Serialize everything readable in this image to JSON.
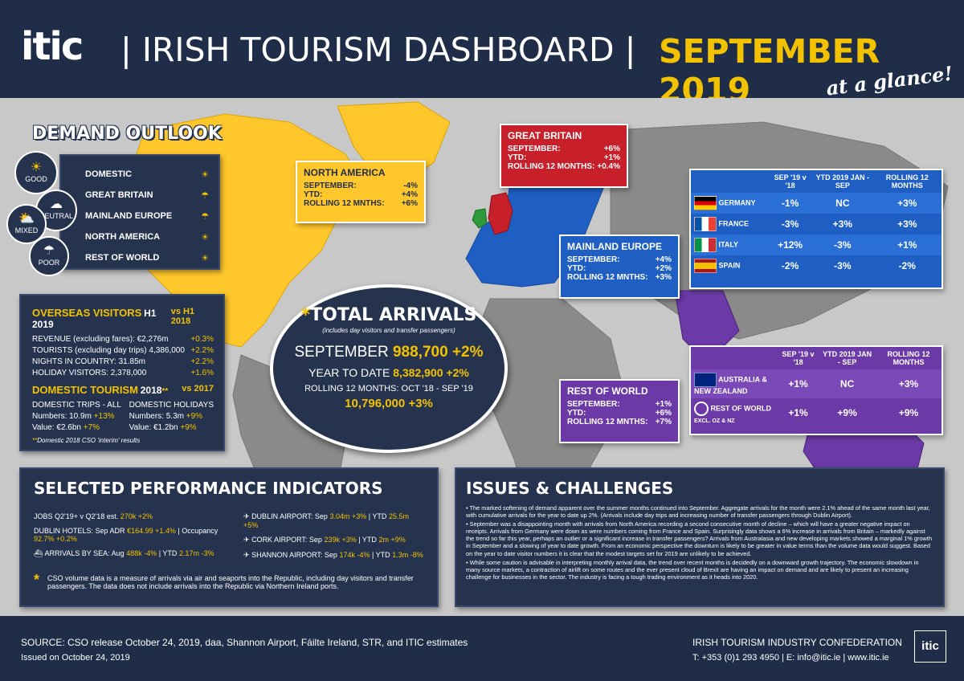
{
  "header": {
    "logo": "itic",
    "title": "|  IRISH TOURISM DASHBOARD  |",
    "month": "SEPTEMBER 2019",
    "tagline": "at a glance!"
  },
  "demand": {
    "title": "DEMAND OUTLOOK",
    "legend": [
      "GOOD",
      "NEUTRAL",
      "MIXED",
      "POOR"
    ],
    "markets": [
      "DOMESTIC",
      "GREAT BRITAIN",
      "MAINLAND EUROPE",
      "NORTH AMERICA",
      "REST OF WORLD"
    ]
  },
  "overseas": {
    "title": "OVERSEAS VISITORS",
    "period": "H1 2019",
    "compare": "vs H1 2018",
    "rows": [
      {
        "label": "REVENUE (excluding fares): €2,276m",
        "change": "+0.3%"
      },
      {
        "label": "TOURISTS (excluding day trips) 4,386,000",
        "change": "+2.2%"
      },
      {
        "label": "NIGHTS IN COUNTRY: 31.85m",
        "change": "+2.2%"
      },
      {
        "label": "HOLIDAY VISITORS: 2,378,000",
        "change": "+1.6%"
      }
    ]
  },
  "domestic": {
    "title": "DOMESTIC TOURISM",
    "period": "2018",
    "stars": "**",
    "compare": "vs 2017",
    "col1_head": "DOMESTIC TRIPS - ALL",
    "col1_num_label": "Numbers: 10.9m",
    "col1_num_change": "+13%",
    "col1_val_label": "Value: €2.6bn",
    "col1_val_change": "+7%",
    "col2_head": "DOMESTIC HOLIDAYS",
    "col2_num_label": "Numbers: 5.3m",
    "col2_num_change": "+9%",
    "col2_val_label": "Value: €1.2bn",
    "col2_val_change": "+9%",
    "note": "Domestic 2018 CSO 'interim' results"
  },
  "total": {
    "title": "TOTAL ARRIVALS",
    "star": "*",
    "sub": "(includes day visitors and transfer passengers)",
    "sep_label": "SEPTEMBER",
    "sep_value": "988,700 +2%",
    "ytd_label": "YEAR TO DATE",
    "ytd_value": "8,382,900 +2%",
    "r12_label": "ROLLING 12 MONTHS: OCT '18 - SEP '19",
    "r12_value": "10,796,000 +3%"
  },
  "north_america": {
    "title": "NORTH AMERICA",
    "rows": [
      {
        "label": "SEPTEMBER:",
        "value": "-4%"
      },
      {
        "label": "YTD:",
        "value": "+4%"
      },
      {
        "label": "ROLLING 12 MNTHS:",
        "value": "+6%"
      }
    ]
  },
  "great_britain": {
    "title": "GREAT BRITAIN",
    "rows": [
      {
        "label": "SEPTEMBER:",
        "value": "+6%"
      },
      {
        "label": "YTD:",
        "value": "+1%"
      },
      {
        "label": "ROLLING 12 MONTHS:",
        "value": "+0.4%"
      }
    ]
  },
  "mainland_europe": {
    "title": "MAINLAND EUROPE",
    "rows": [
      {
        "label": "SEPTEMBER:",
        "value": "+4%"
      },
      {
        "label": "YTD:",
        "value": "+2%"
      },
      {
        "label": "ROLLING 12 MNTHS:",
        "value": "+3%"
      }
    ]
  },
  "rest_of_world": {
    "title": "REST OF WORLD",
    "rows": [
      {
        "label": "SEPTEMBER:",
        "value": "+1%"
      },
      {
        "label": "YTD:",
        "value": "+6%"
      },
      {
        "label": "ROLLING 12 MNTHS:",
        "value": "+7%"
      }
    ]
  },
  "europe_table": {
    "head": [
      "SEP '19 v '18",
      "YTD 2019 JAN - SEP",
      "ROLLING 12 MONTHS"
    ],
    "rows": [
      {
        "country": "GERMANY",
        "sep": "-1%",
        "ytd": "NC",
        "r12": "+3%"
      },
      {
        "country": "FRANCE",
        "sep": "-3%",
        "ytd": "+3%",
        "r12": "+3%"
      },
      {
        "country": "ITALY",
        "sep": "+12%",
        "ytd": "-3%",
        "r12": "+1%"
      },
      {
        "country": "SPAIN",
        "sep": "-2%",
        "ytd": "-3%",
        "r12": "-2%"
      }
    ]
  },
  "row_table": {
    "head": [
      "SEP '19 v '18",
      "YTD 2019 JAN - SEP",
      "ROLLING 12 MONTHS"
    ],
    "rows": [
      {
        "country": "AUSTRALIA & NEW ZEALAND",
        "sub": "",
        "sep": "+1%",
        "ytd": "NC",
        "r12": "+3%"
      },
      {
        "country": "REST OF WORLD",
        "sub": "EXCL. OZ & NZ",
        "sep": "+1%",
        "ytd": "+9%",
        "r12": "+9%"
      }
    ]
  },
  "spi": {
    "title": "SELECTED PERFORMANCE INDICATORS",
    "jobs_label": "JOBS Q2'19+ v Q2'18 est.",
    "jobs_val": "270k +2%",
    "hotels_label": "DUBLIN HOTELS: Sep ADR",
    "hotels_adr": "€164.99 +1.4%",
    "hotels_occ_label": "| Occupancy",
    "hotels_occ": "92.7% +0.2%",
    "sea_label": "ARRIVALS BY SEA: Aug",
    "sea_val": "488k -4%",
    "sea_ytd_label": "| YTD",
    "sea_ytd": "2.17m -3%",
    "dub_label": "DUBLIN AIRPORT: Sep",
    "dub_val": "3.04m +3%",
    "dub_ytd_label": "| YTD",
    "dub_ytd": "25.5m +5%",
    "cork_label": "CORK AIRPORT: Sep",
    "cork_val": "239k +3%",
    "cork_ytd_label": "| YTD",
    "cork_ytd": "2m +9%",
    "shan_label": "SHANNON AIRPORT: Sep",
    "shan_val": "174k -4%",
    "shan_ytd_label": "| YTD",
    "shan_ytd": "1.3m -8%",
    "star": "*",
    "note": "CSO volume data is a measure of arrivals via air and seaports into the Republic, including day visitors and transfer passengers. The data does not include arrivals into the Republic via Northern Ireland ports."
  },
  "issues": {
    "title": "ISSUES & CHALLENGES",
    "bullets": [
      "The marked softening of demand apparent over the summer months continued into September. Aggregate arrivals for the month were 2.1% ahead of the same month last year, with cumulative arrivals for the year to date up 2%. (Arrivals include day trips and increasing number of transfer passengers through Dublin Airport).",
      "September was a disappointing month with arrivals from North America recording a second consecutive month of decline – which will have a greater negative impact on receipts. Arrivals from Germany were down as were numbers coming from France and Spain. Surprisingly data shows a 6% increase in arrivals from Britain – markedly against the trend so far this year, perhaps an outlier or a significant increase in transfer passengers? Arrivals from Australasia and new developing markets showed a marginal 1% growth in September and a slowing of year to date growth. From an economic perspective the downturn is likely to be greater in value terms than the volume data would suggest. Based on the year to date visitor numbers it is clear that the modest targets set for 2019 are unlikely to be achieved.",
      "While some caution is advisable in interpreting monthly arrival data, the trend over recent months is decidedly on a downward growth trajectory. The economic slowdown in many source markets, a contraction of airlift on some routes and the ever present cloud of Brexit are having an impact on demand and are likely to present an increasing challenge for businesses in the sector. The industry is facing a tough trading environment as it heads into 2020."
    ]
  },
  "footer": {
    "source": "SOURCE: CSO release October 24, 2019, daa, Shannon Airport, Fáilte Ireland, STR, and ITIC estimates",
    "issued": "Issued on October 24, 2019",
    "org": "IRISH TOURISM INDUSTRY CONFEDERATION",
    "contact": "T: +353 (0)1 293 4950 | E: info@itic.ie | www.itic.ie",
    "logo": "itic"
  },
  "colors": {
    "navy": "#1f2d48",
    "gold": "#f2c200",
    "na_yellow": "#ffc72c",
    "gb_red": "#c8202b",
    "europe_blue": "#1f5fc4",
    "row_purple": "#6b3aa6"
  }
}
